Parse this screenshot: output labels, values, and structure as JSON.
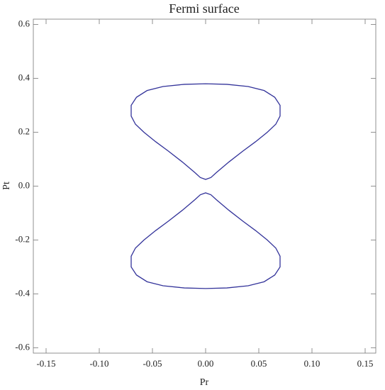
{
  "chart_data": {
    "type": "line",
    "title": "Fermi surface",
    "xlabel": "Pr",
    "ylabel": "Pt",
    "xlim": [
      -0.162,
      0.16
    ],
    "ylim": [
      -0.62,
      0.62
    ],
    "xticks": [
      -0.15,
      {
        "value": -0.1,
        "label": "-0.10"
      },
      -0.05,
      {
        "value": 0,
        "label": "0.00"
      },
      0.05,
      {
        "value": 0.1,
        "label": "0.10"
      },
      0.15
    ],
    "yticks": [
      -0.6,
      -0.4,
      -0.2,
      {
        "value": 0,
        "label": "0.0"
      },
      0.2,
      0.4,
      0.6
    ],
    "series": [
      {
        "color": "#33339a",
        "x": [
          0,
          0.02,
          0.04,
          0.055,
          0.065,
          0.07,
          0.07,
          0.066,
          0.058,
          0.047,
          0.035,
          0.022,
          0.01,
          0.005,
          0,
          -0.005,
          -0.01,
          -0.022,
          -0.035,
          -0.047,
          -0.058,
          -0.066,
          -0.07,
          -0.07,
          -0.065,
          -0.055,
          -0.04,
          -0.02,
          0
        ],
        "values": [
          0.38,
          0.378,
          0.37,
          0.355,
          0.33,
          0.3,
          0.26,
          0.23,
          0.2,
          0.165,
          0.13,
          0.09,
          0.05,
          0.032,
          0.025,
          0.032,
          0.05,
          0.09,
          0.13,
          0.165,
          0.2,
          0.23,
          0.26,
          0.3,
          0.33,
          0.355,
          0.37,
          0.378,
          0.38
        ]
      },
      {
        "color": "#33339a",
        "x": [
          0,
          0.02,
          0.04,
          0.055,
          0.065,
          0.07,
          0.07,
          0.066,
          0.058,
          0.047,
          0.035,
          0.022,
          0.01,
          0.005,
          0,
          -0.005,
          -0.01,
          -0.022,
          -0.035,
          -0.047,
          -0.058,
          -0.066,
          -0.07,
          -0.07,
          -0.065,
          -0.055,
          -0.04,
          -0.02,
          0
        ],
        "values": [
          -0.38,
          -0.378,
          -0.37,
          -0.355,
          -0.33,
          -0.3,
          -0.26,
          -0.23,
          -0.2,
          -0.165,
          -0.13,
          -0.09,
          -0.05,
          -0.032,
          -0.025,
          -0.032,
          -0.05,
          -0.09,
          -0.13,
          -0.165,
          -0.2,
          -0.23,
          -0.26,
          -0.3,
          -0.33,
          -0.355,
          -0.37,
          -0.378,
          -0.38
        ]
      }
    ]
  }
}
